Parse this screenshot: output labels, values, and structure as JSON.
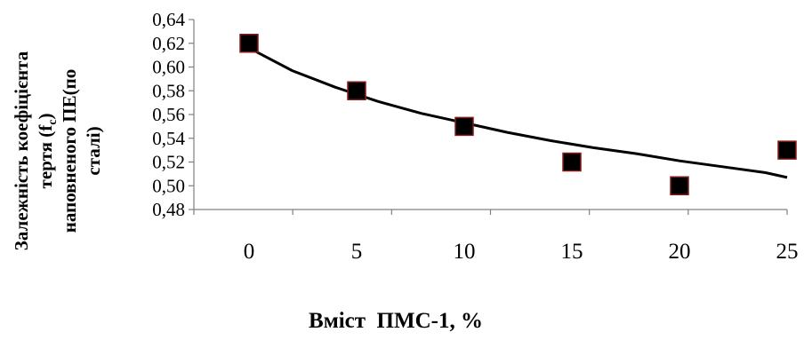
{
  "chart_data": {
    "type": "scatter",
    "x": [
      0,
      5,
      10,
      15,
      20,
      25
    ],
    "y": [
      0.62,
      0.58,
      0.55,
      0.52,
      0.5,
      0.53
    ],
    "xlabel": "Вміст  ПМС-1, %",
    "ylabel_lines": [
      "Залежність коефіцієнта",
      "тертя (f",
      "c",
      ")",
      "наповненого ПЕ(по",
      "сталі)"
    ],
    "x_ticks": [
      "0",
      "5",
      "10",
      "15",
      "20",
      "25"
    ],
    "y_ticks": [
      "0,48",
      "0,50",
      "0,52",
      "0,54",
      "0,56",
      "0,58",
      "0,60",
      "0,62",
      "0,64"
    ],
    "xlim": [
      0,
      25
    ],
    "ylim": [
      0.48,
      0.64
    ],
    "trendline": {
      "type": "logarithmic-like",
      "x": [
        0,
        2,
        4,
        6,
        8,
        10,
        12,
        14,
        16,
        18,
        20,
        22,
        24,
        25
      ],
      "y": [
        0.616,
        0.597,
        0.583,
        0.571,
        0.561,
        0.553,
        0.545,
        0.538,
        0.532,
        0.527,
        0.521,
        0.516,
        0.511,
        0.507
      ]
    },
    "marker_color": "#000000",
    "marker_edge_color": "#8b1a1a",
    "line_color": "#000000",
    "grid": false,
    "legend": "none"
  }
}
